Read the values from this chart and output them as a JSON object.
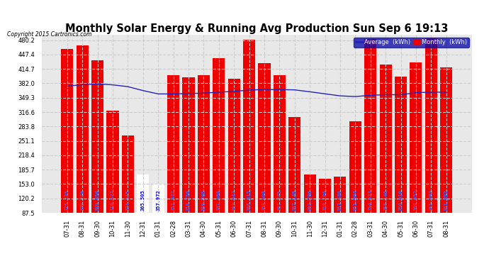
{
  "title": "Monthly Solar Energy & Running Avg Production Sun Sep 6 19:13",
  "copyright": "Copyright 2015 Cartronics.com",
  "categories": [
    "07-31",
    "08-31",
    "09-30",
    "10-31",
    "11-30",
    "12-31",
    "01-31",
    "02-28",
    "03-31",
    "04-30",
    "05-31",
    "06-30",
    "07-31",
    "08-31",
    "09-30",
    "10-31",
    "11-30",
    "12-31",
    "01-31",
    "02-28",
    "03-31",
    "04-30",
    "05-31",
    "06-30",
    "07-31",
    "08-31"
  ],
  "monthly_values": [
    460.0,
    468.0,
    435.0,
    320.0,
    263.0,
    174.0,
    153.0,
    400.0,
    395.0,
    400.0,
    440.0,
    393.0,
    482.0,
    428.0,
    400.0,
    305.0,
    174.0,
    165.0,
    170.0,
    295.0,
    483.0,
    425.0,
    398.0,
    430.0,
    484.0,
    418.0
  ],
  "avg_values": [
    375.735,
    378.778,
    380.85,
    378.527,
    374.515,
    365.505,
    357.972,
    357.827,
    358.756,
    359.765,
    361.868,
    363.647,
    366.615,
    368.008,
    367.775,
    367.149,
    362.786,
    358.196,
    353.48,
    351.994,
    354.673,
    356.146,
    356.01,
    360.852,
    361.892,
    361.892
  ],
  "white_bars": [
    5,
    6
  ],
  "bar_color": "#ee0000",
  "white_bar_color": "#ffffff",
  "line_color": "#2222bb",
  "bg_color": "#ffffff",
  "plot_bg": "#e8e8e8",
  "grid_color": "#cccccc",
  "ylim": [
    87.5,
    492.9
  ],
  "yticks": [
    87.5,
    120.2,
    153.0,
    185.7,
    218.4,
    251.1,
    283.8,
    316.6,
    349.3,
    382.0,
    414.7,
    447.4,
    480.2
  ],
  "legend_avg_label": "Average  (kWh)",
  "legend_monthly_label": "Monthly  (kWh)",
  "title_fontsize": 10.5,
  "tick_fontsize": 6.0,
  "value_fontsize": 5.0,
  "label_color_normal": "#4466ff",
  "label_color_white": "#0000dd"
}
